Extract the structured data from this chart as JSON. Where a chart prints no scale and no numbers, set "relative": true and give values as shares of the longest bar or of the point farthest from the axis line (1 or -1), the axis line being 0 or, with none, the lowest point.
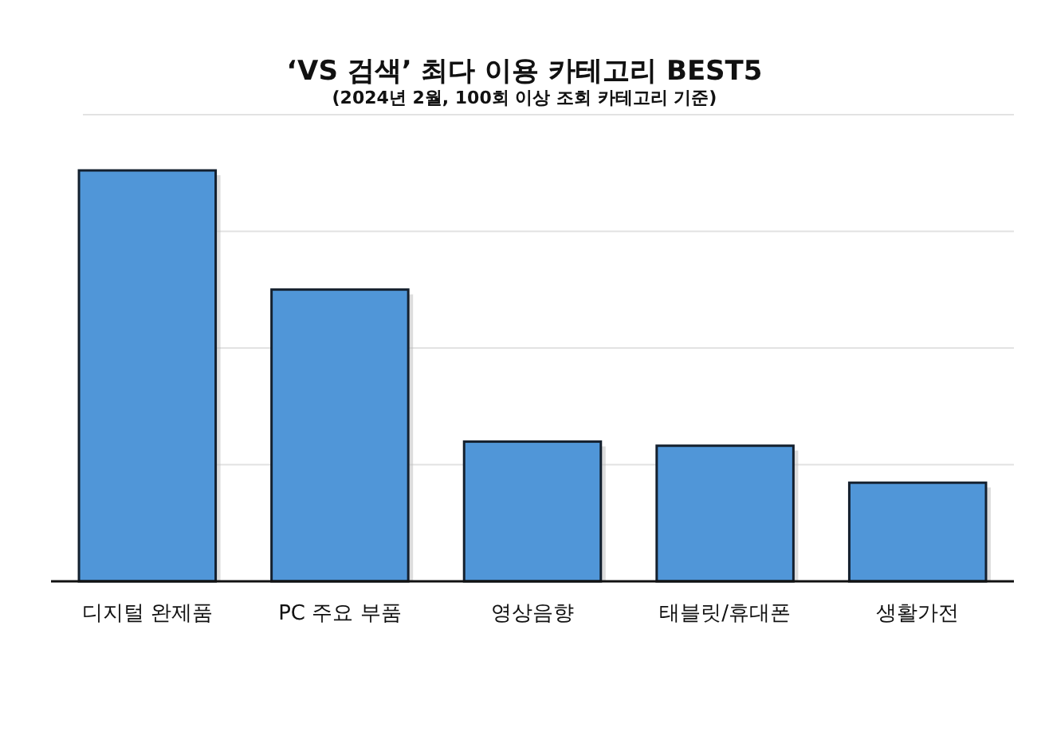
{
  "chart_data": {
    "type": "bar",
    "title": "‘VS 검색’ 최다 이용 카테고리 BEST5",
    "subtitle": "(2024년 2월, 100회 이상 조회 카테고리 기준)",
    "categories": [
      "디지털 완제품",
      "PC 주요 부품",
      "영상음향",
      "태블릿/휴대폰",
      "생활가전"
    ],
    "values": [
      1,
      0.71,
      0.34,
      0.33,
      0.24
    ],
    "color": "#5096d8",
    "relative": true,
    "grid": "y"
  }
}
